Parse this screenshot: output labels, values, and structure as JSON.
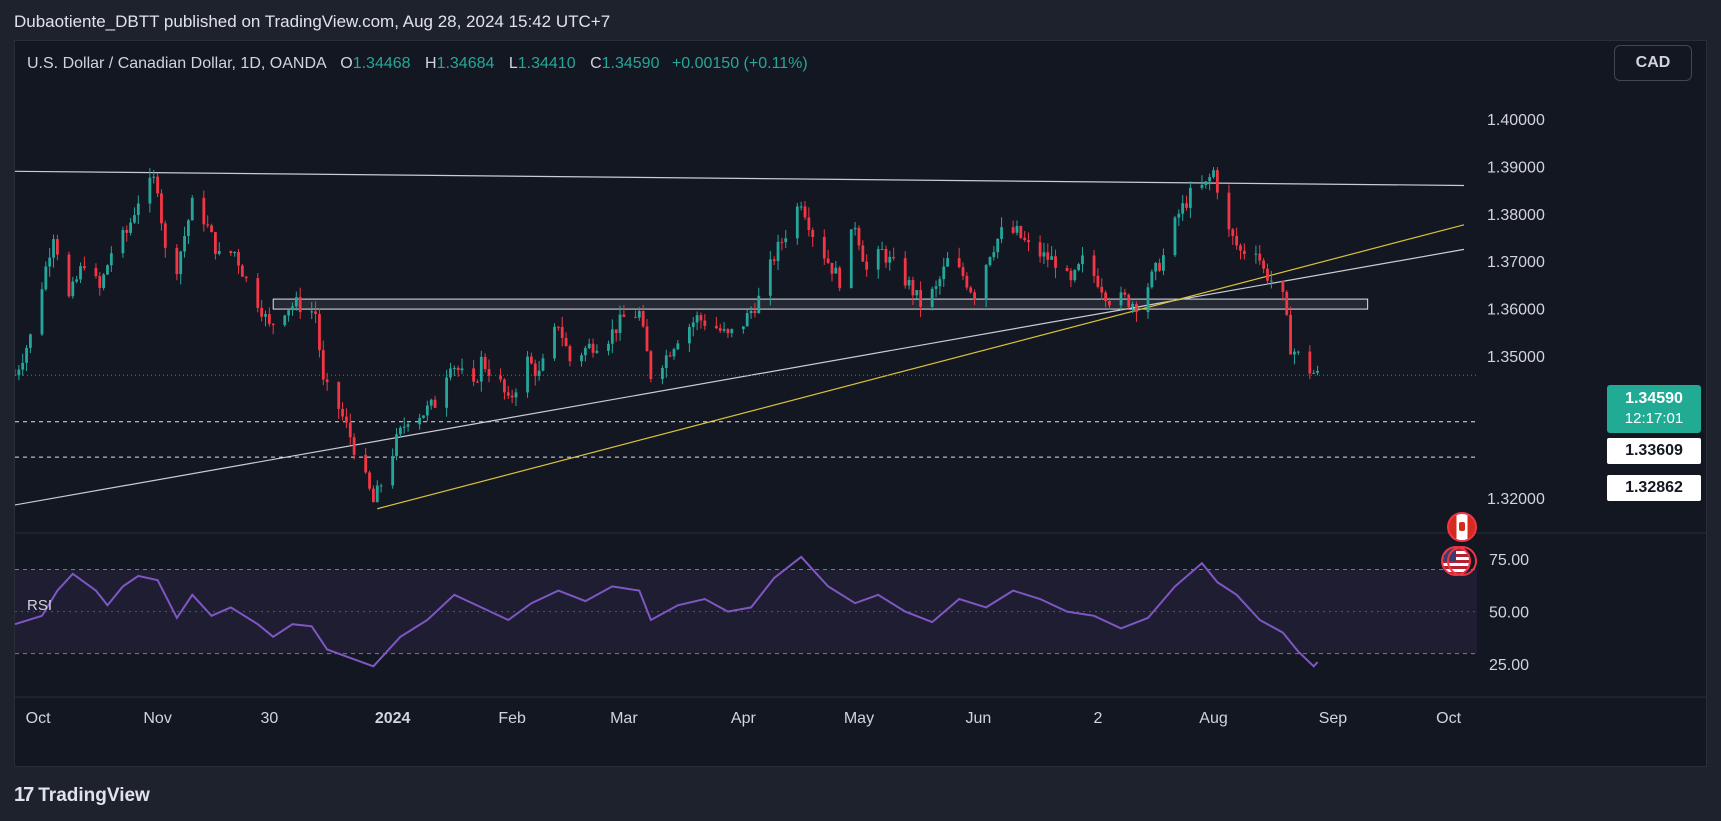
{
  "header": {
    "publisher_line": "Dubaotiente_DBTT published on TradingView.com, Aug 28, 2024 15:42 UTC+7"
  },
  "legend": {
    "symbol": "U.S. Dollar / Canadian Dollar, 1D, OANDA",
    "open_label": "O",
    "open_value": "1.34468",
    "high_label": "H",
    "high_value": "1.34684",
    "low_label": "L",
    "low_value": "1.34410",
    "close_label": "C",
    "close_value": "1.34590",
    "change": "+0.00150 (+0.11%)"
  },
  "currency_button": "CAD",
  "last_price": {
    "value": "1.34590",
    "countdown": "12:17:01"
  },
  "levels": [
    {
      "label": "1.33609",
      "value": 1.33609
    },
    {
      "label": "1.32862",
      "value": 1.32862
    }
  ],
  "price_axis": {
    "labels": [
      "1.40000",
      "1.39000",
      "1.38000",
      "1.37000",
      "1.36000",
      "1.35000",
      "1.32000"
    ],
    "values": [
      1.4,
      1.39,
      1.38,
      1.37,
      1.36,
      1.35,
      1.32
    ]
  },
  "rsi": {
    "label": "RSI",
    "axis_labels": [
      "75.00",
      "50.00",
      "25.00"
    ],
    "axis_values": [
      75,
      50,
      25
    ],
    "band": [
      30,
      70
    ]
  },
  "time_axis": {
    "labels": [
      "Oct",
      "Nov",
      "30",
      "2024",
      "Feb",
      "Mar",
      "Apr",
      "May",
      "Jun",
      "2",
      "Aug",
      "Sep",
      "Oct"
    ],
    "bold": [
      false,
      false,
      false,
      true,
      false,
      false,
      false,
      false,
      false,
      false,
      false,
      false,
      false
    ]
  },
  "footer": {
    "brand": "TradingView"
  },
  "colors": {
    "up": "#26a69a",
    "down": "#f23645",
    "background": "#131722",
    "rsi_line": "#7e57c2",
    "yellow_trend": "#d9c13a",
    "white_trend": "#c9ccd4"
  },
  "chart_data": {
    "type": "candlestick",
    "title": "U.S. Dollar / Canadian Dollar, 1D, OANDA",
    "ylim": [
      1.313,
      1.4085
    ],
    "x_range": [
      "2023-09-25",
      "2024-10-05"
    ],
    "price_path": [
      [
        "2023-09-25",
        1.346
      ],
      [
        "2023-09-29",
        1.354
      ],
      [
        "2023-10-05",
        1.376
      ],
      [
        "2023-10-09",
        1.362
      ],
      [
        "2023-10-13",
        1.37
      ],
      [
        "2023-10-17",
        1.364
      ],
      [
        "2023-10-20",
        1.372
      ],
      [
        "2023-10-24",
        1.376
      ],
      [
        "2023-10-27",
        1.383
      ],
      [
        "2023-10-31",
        1.387
      ],
      [
        "2023-11-01",
        1.386
      ],
      [
        "2023-11-03",
        1.372
      ],
      [
        "2023-11-06",
        1.369
      ],
      [
        "2023-11-10",
        1.382
      ],
      [
        "2023-11-13",
        1.379
      ],
      [
        "2023-11-17",
        1.371
      ],
      [
        "2023-11-21",
        1.372
      ],
      [
        "2023-11-24",
        1.366
      ],
      [
        "2023-11-28",
        1.36
      ],
      [
        "2023-11-30",
        1.356
      ],
      [
        "2023-12-04",
        1.36
      ],
      [
        "2023-12-07",
        1.361
      ],
      [
        "2023-12-12",
        1.359
      ],
      [
        "2023-12-14",
        1.344
      ],
      [
        "2023-12-18",
        1.339
      ],
      [
        "2023-12-21",
        1.333
      ],
      [
        "2023-12-27",
        1.319
      ],
      [
        "2023-12-29",
        1.323
      ],
      [
        "2024-01-02",
        1.332
      ],
      [
        "2024-01-05",
        1.337
      ],
      [
        "2024-01-09",
        1.338
      ],
      [
        "2024-01-12",
        1.34
      ],
      [
        "2024-01-16",
        1.349
      ],
      [
        "2024-01-18",
        1.347
      ],
      [
        "2024-01-22",
        1.343
      ],
      [
        "2024-01-24",
        1.349
      ],
      [
        "2024-01-29",
        1.344
      ],
      [
        "2024-01-31",
        1.34
      ],
      [
        "2024-02-05",
        1.349
      ],
      [
        "2024-02-08",
        1.346
      ],
      [
        "2024-02-13",
        1.357
      ],
      [
        "2024-02-16",
        1.349
      ],
      [
        "2024-02-21",
        1.352
      ],
      [
        "2024-02-26",
        1.354
      ],
      [
        "2024-03-01",
        1.358
      ],
      [
        "2024-03-05",
        1.359
      ],
      [
        "2024-03-08",
        1.346
      ],
      [
        "2024-03-12",
        1.35
      ],
      [
        "2024-03-15",
        1.354
      ],
      [
        "2024-03-20",
        1.358
      ],
      [
        "2024-03-25",
        1.356
      ],
      [
        "2024-03-28",
        1.354
      ],
      [
        "2024-04-01",
        1.357
      ],
      [
        "2024-04-05",
        1.362
      ],
      [
        "2024-04-09",
        1.371
      ],
      [
        "2024-04-12",
        1.376
      ],
      [
        "2024-04-16",
        1.383
      ],
      [
        "2024-04-19",
        1.376
      ],
      [
        "2024-04-23",
        1.37
      ],
      [
        "2024-04-26",
        1.366
      ],
      [
        "2024-04-30",
        1.378
      ],
      [
        "2024-05-03",
        1.368
      ],
      [
        "2024-05-07",
        1.372
      ],
      [
        "2024-05-10",
        1.369
      ],
      [
        "2024-05-14",
        1.365
      ],
      [
        "2024-05-17",
        1.361
      ],
      [
        "2024-05-21",
        1.364
      ],
      [
        "2024-05-24",
        1.37
      ],
      [
        "2024-05-28",
        1.367
      ],
      [
        "2024-05-31",
        1.363
      ],
      [
        "2024-06-04",
        1.372
      ],
      [
        "2024-06-07",
        1.376
      ],
      [
        "2024-06-11",
        1.376
      ],
      [
        "2024-06-14",
        1.373
      ],
      [
        "2024-06-18",
        1.371
      ],
      [
        "2024-06-21",
        1.37
      ],
      [
        "2024-06-25",
        1.365
      ],
      [
        "2024-06-28",
        1.37
      ],
      [
        "2024-07-02",
        1.366
      ],
      [
        "2024-07-05",
        1.362
      ],
      [
        "2024-07-09",
        1.362
      ],
      [
        "2024-07-12",
        1.361
      ],
      [
        "2024-07-15",
        1.365
      ],
      [
        "2024-07-19",
        1.371
      ],
      [
        "2024-07-23",
        1.38
      ],
      [
        "2024-07-26",
        1.384
      ],
      [
        "2024-07-30",
        1.386
      ],
      [
        "2024-08-01",
        1.389
      ],
      [
        "2024-08-05",
        1.376
      ],
      [
        "2024-08-08",
        1.372
      ],
      [
        "2024-08-12",
        1.373
      ],
      [
        "2024-08-14",
        1.368
      ],
      [
        "2024-08-16",
        1.366
      ],
      [
        "2024-08-19",
        1.362
      ],
      [
        "2024-08-21",
        1.352
      ],
      [
        "2024-08-23",
        1.35
      ],
      [
        "2024-08-26",
        1.347
      ],
      [
        "2024-08-28",
        1.3459
      ]
    ],
    "horizontal_trendline": {
      "start": [
        "2023-09-25",
        1.389
      ],
      "end": [
        "2024-10-05",
        1.386
      ]
    },
    "white_trendline": {
      "start": [
        "2023-09-25",
        1.3185
      ],
      "end": [
        "2024-10-05",
        1.3725
      ]
    },
    "yellow_trendline": {
      "start": [
        "2023-12-28",
        1.3177
      ],
      "end": [
        "2024-10-05",
        1.3777
      ]
    },
    "zone": {
      "start": "2023-12-01",
      "end": "2024-09-10",
      "top": 1.362,
      "bottom": 1.36
    },
    "rsi_path": [
      [
        "2023-09-25",
        44
      ],
      [
        "2023-10-02",
        48
      ],
      [
        "2023-10-06",
        60
      ],
      [
        "2023-10-10",
        68
      ],
      [
        "2023-10-16",
        60
      ],
      [
        "2023-10-19",
        53
      ],
      [
        "2023-10-23",
        62
      ],
      [
        "2023-10-27",
        67
      ],
      [
        "2023-11-01",
        65
      ],
      [
        "2023-11-06",
        47
      ],
      [
        "2023-11-10",
        58
      ],
      [
        "2023-11-15",
        48
      ],
      [
        "2023-11-20",
        52
      ],
      [
        "2023-11-27",
        44
      ],
      [
        "2023-12-01",
        38
      ],
      [
        "2023-12-06",
        44
      ],
      [
        "2023-12-11",
        43
      ],
      [
        "2023-12-15",
        32
      ],
      [
        "2023-12-21",
        28
      ],
      [
        "2023-12-27",
        24
      ],
      [
        "2024-01-03",
        38
      ],
      [
        "2024-01-10",
        46
      ],
      [
        "2024-01-17",
        58
      ],
      [
        "2024-01-24",
        52
      ],
      [
        "2024-01-31",
        46
      ],
      [
        "2024-02-06",
        54
      ],
      [
        "2024-02-13",
        60
      ],
      [
        "2024-02-20",
        55
      ],
      [
        "2024-02-27",
        62
      ],
      [
        "2024-03-05",
        60
      ],
      [
        "2024-03-08",
        46
      ],
      [
        "2024-03-15",
        53
      ],
      [
        "2024-03-22",
        56
      ],
      [
        "2024-03-28",
        50
      ],
      [
        "2024-04-03",
        52
      ],
      [
        "2024-04-09",
        66
      ],
      [
        "2024-04-16",
        76
      ],
      [
        "2024-04-23",
        62
      ],
      [
        "2024-04-30",
        54
      ],
      [
        "2024-05-06",
        58
      ],
      [
        "2024-05-13",
        50
      ],
      [
        "2024-05-20",
        45
      ],
      [
        "2024-05-27",
        56
      ],
      [
        "2024-06-03",
        52
      ],
      [
        "2024-06-10",
        60
      ],
      [
        "2024-06-17",
        56
      ],
      [
        "2024-06-24",
        50
      ],
      [
        "2024-07-01",
        48
      ],
      [
        "2024-07-08",
        42
      ],
      [
        "2024-07-15",
        47
      ],
      [
        "2024-07-22",
        62
      ],
      [
        "2024-07-29",
        73
      ],
      [
        "2024-08-02",
        64
      ],
      [
        "2024-08-07",
        58
      ],
      [
        "2024-08-13",
        46
      ],
      [
        "2024-08-19",
        40
      ],
      [
        "2024-08-23",
        31
      ],
      [
        "2024-08-27",
        24
      ],
      [
        "2024-08-28",
        26
      ]
    ]
  }
}
